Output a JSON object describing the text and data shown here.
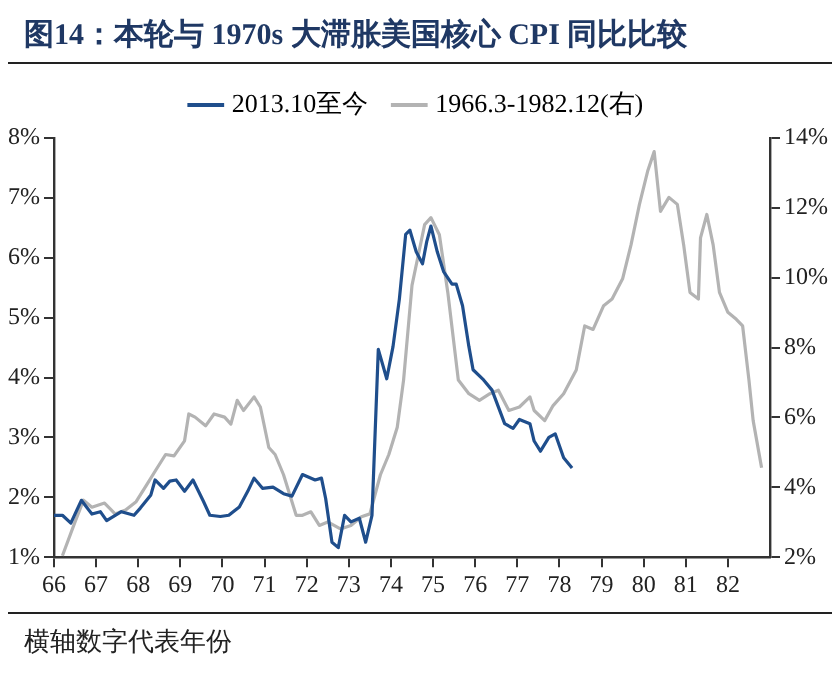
{
  "chart_data": {
    "type": "line",
    "title": "图14：本轮与 1970s 大滞胀美国核心 CPI 同比比较",
    "annotations": [
      "横轴数字代表年份"
    ],
    "xlim": [
      66,
      83
    ],
    "xticks": [
      66,
      67,
      68,
      69,
      70,
      71,
      72,
      73,
      74,
      75,
      76,
      77,
      78,
      79,
      80,
      81,
      82
    ],
    "ylim": [
      1,
      8
    ],
    "yticks": [
      {
        "value": 1,
        "label": "1%"
      },
      {
        "value": 2,
        "label": "2%"
      },
      {
        "value": 3,
        "label": "3%"
      },
      {
        "value": 4,
        "label": "4%"
      },
      {
        "value": 5,
        "label": "5%"
      },
      {
        "value": 6,
        "label": "6%"
      },
      {
        "value": 7,
        "label": "7%"
      },
      {
        "value": 8,
        "label": "8%"
      }
    ],
    "y2lim": [
      2,
      14
    ],
    "y2ticks": [
      {
        "value": 2,
        "label": "2%"
      },
      {
        "value": 4,
        "label": "4%"
      },
      {
        "value": 6,
        "label": "6%"
      },
      {
        "value": 8,
        "label": "8%"
      },
      {
        "value": 10,
        "label": "10%"
      },
      {
        "value": 12,
        "label": "12%"
      },
      {
        "value": 14,
        "label": "14%"
      }
    ],
    "grid": false,
    "legend": "top",
    "marker": "none",
    "line_style": "solid",
    "series": [
      {
        "name": "2013.10至今",
        "color": "#1f4e8c",
        "x": [
          66.0,
          66.2,
          66.4,
          66.65,
          66.9,
          67.1,
          67.25,
          67.6,
          67.9,
          68.05,
          68.3,
          68.4,
          68.6,
          68.75,
          68.9,
          69.1,
          69.3,
          69.55,
          69.7,
          69.95,
          70.15,
          70.4,
          70.6,
          70.75,
          70.95,
          71.2,
          71.45,
          71.65,
          71.9,
          72.2,
          72.35,
          72.45,
          72.6,
          72.75,
          72.9,
          73.05,
          73.25,
          73.4,
          73.55,
          73.7,
          73.9,
          74.05,
          74.2,
          74.35,
          74.45,
          74.6,
          74.75,
          74.85,
          74.95,
          75.1,
          75.25,
          75.45,
          75.55,
          75.7,
          75.85,
          75.95,
          76.2,
          76.4,
          76.55,
          76.7,
          76.9,
          77.05,
          77.3,
          77.4,
          77.55,
          77.75,
          77.9,
          78.1,
          78.3
        ],
        "values": [
          1.7,
          1.7,
          1.57,
          1.95,
          1.72,
          1.76,
          1.61,
          1.76,
          1.7,
          1.82,
          2.04,
          2.29,
          2.15,
          2.27,
          2.29,
          2.1,
          2.29,
          1.93,
          1.7,
          1.68,
          1.7,
          1.84,
          2.1,
          2.32,
          2.15,
          2.17,
          2.06,
          2.02,
          2.38,
          2.29,
          2.32,
          1.98,
          1.25,
          1.16,
          1.7,
          1.59,
          1.65,
          1.25,
          1.7,
          4.47,
          3.98,
          4.52,
          5.31,
          6.39,
          6.46,
          6.1,
          5.9,
          6.27,
          6.53,
          6.1,
          5.77,
          5.56,
          5.56,
          5.2,
          4.52,
          4.13,
          3.96,
          3.79,
          3.51,
          3.23,
          3.15,
          3.3,
          3.23,
          2.94,
          2.77,
          3.0,
          3.06,
          2.66,
          2.49
        ]
      },
      {
        "name": "1966.3-1982.12(右)",
        "color": "#b3b3b3",
        "axis": "y2",
        "x": [
          66.2,
          66.5,
          66.7,
          66.9,
          67.2,
          67.45,
          67.7,
          67.95,
          68.2,
          68.4,
          68.65,
          68.85,
          69.1,
          69.2,
          69.35,
          69.6,
          69.8,
          70.05,
          70.2,
          70.35,
          70.5,
          70.75,
          70.9,
          71.1,
          71.25,
          71.45,
          71.75,
          71.9,
          72.1,
          72.3,
          72.5,
          72.8,
          73.05,
          73.3,
          73.5,
          73.75,
          73.95,
          74.15,
          74.3,
          74.5,
          74.65,
          74.8,
          74.95,
          75.15,
          75.35,
          75.6,
          75.85,
          76.1,
          76.35,
          76.55,
          76.8,
          77.05,
          77.3,
          77.4,
          77.65,
          77.85,
          78.1,
          78.4,
          78.6,
          78.8,
          79.05,
          79.25,
          79.5,
          79.7,
          79.9,
          80.1,
          80.25,
          80.4,
          80.6,
          80.8,
          80.95,
          81.1,
          81.3,
          81.35,
          81.5,
          81.65,
          81.8,
          82.0,
          82.2,
          82.35,
          82.5,
          82.6,
          82.8
        ],
        "values": [
          2.04,
          3.01,
          3.63,
          3.43,
          3.55,
          3.24,
          3.35,
          3.59,
          4.07,
          4.46,
          4.94,
          4.9,
          5.33,
          6.1,
          6.01,
          5.76,
          6.1,
          6.01,
          5.81,
          6.49,
          6.2,
          6.59,
          6.3,
          5.14,
          4.94,
          4.36,
          3.2,
          3.2,
          3.3,
          2.91,
          3.01,
          2.81,
          2.91,
          3.16,
          3.24,
          4.36,
          4.94,
          5.72,
          7.07,
          9.78,
          10.65,
          11.52,
          11.72,
          11.23,
          9.58,
          7.07,
          6.68,
          6.49,
          6.68,
          6.78,
          6.2,
          6.3,
          6.59,
          6.2,
          5.91,
          6.34,
          6.68,
          7.36,
          8.62,
          8.52,
          9.2,
          9.39,
          9.97,
          10.94,
          12.1,
          13.07,
          13.61,
          11.9,
          12.3,
          12.1,
          10.94,
          9.58,
          9.39,
          11.14,
          11.81,
          10.94,
          9.58,
          9.01,
          8.81,
          8.62,
          7.07,
          5.91,
          4.56
        ]
      }
    ]
  }
}
